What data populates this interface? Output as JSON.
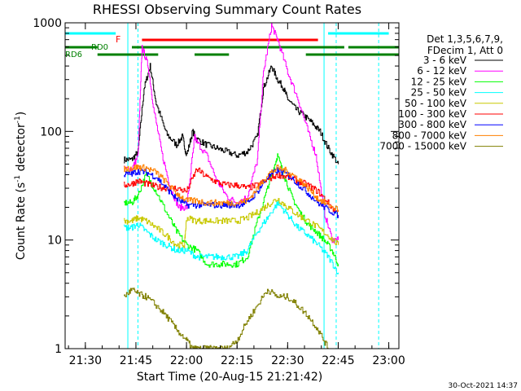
{
  "chart_data": {
    "type": "line",
    "title": "RHESSI Observing Summary Count Rates",
    "xlabel": "Start Time (20-Aug-15 21:21:42)",
    "ylabel_main": "Count Rate (s",
    "ylabel_sup1": "-1",
    "ylabel_mid": " detector",
    "ylabel_sup2": "-1",
    "ylabel_end": ")",
    "yscale": "log",
    "xlim": [
      21.4,
      23.05
    ],
    "ylim": [
      1,
      1000
    ],
    "xticks": [
      {
        "v": 21.5,
        "label": "21:30"
      },
      {
        "v": 21.75,
        "label": "21:45"
      },
      {
        "v": 22.0,
        "label": "22:00"
      },
      {
        "v": 22.25,
        "label": "22:15"
      },
      {
        "v": 22.5,
        "label": "22:30"
      },
      {
        "v": 22.75,
        "label": "22:45"
      },
      {
        "v": 23.0,
        "label": "23:00"
      }
    ],
    "yticks": [
      {
        "v": 1,
        "label": "1"
      },
      {
        "v": 10,
        "label": "10"
      },
      {
        "v": 100,
        "label": "100"
      },
      {
        "v": 1000,
        "label": "1000"
      }
    ],
    "legend_header": [
      "Det 1,3,5,6,7,9,",
      "FDecim 1, Att 0"
    ],
    "annotations": {
      "flare_flag": "F",
      "rd0": "RD0",
      "rd6": "RD6",
      "timestamp": "30-Oct-2021 14:37"
    },
    "flag_bars": [
      {
        "name": "F",
        "color": "#ff0000",
        "y": 49,
        "segments": [
          [
            21.78,
            22.65
          ]
        ]
      },
      {
        "name": "RD0",
        "color": "#008000",
        "y": 58,
        "segments": [
          [
            21.4,
            21.56
          ],
          [
            21.73,
            22.78
          ],
          [
            22.8,
            23.05
          ]
        ]
      },
      {
        "name": "RD6",
        "color": "#008000",
        "y": 67,
        "segments": [
          [
            21.56,
            21.86
          ],
          [
            22.04,
            22.21
          ],
          [
            22.59,
            23.05
          ]
        ]
      },
      {
        "name": "SAA",
        "color": "#00ffff",
        "y": 41,
        "segments": [
          [
            21.4,
            21.65
          ],
          [
            22.7,
            23.0
          ]
        ]
      }
    ],
    "vlines": [
      {
        "x": 21.71,
        "color": "#00ffff",
        "dashed": false
      },
      {
        "x": 21.76,
        "color": "#00ffff",
        "dashed": true
      },
      {
        "x": 22.68,
        "color": "#00ffff",
        "dashed": false
      },
      {
        "x": 22.74,
        "color": "#00ffff",
        "dashed": true
      },
      {
        "x": 22.95,
        "color": "#00ffff",
        "dashed": true
      }
    ],
    "series": [
      {
        "name": "3 - 6 keV",
        "color": "#000000",
        "x": [
          21.69,
          21.73,
          21.76,
          21.79,
          21.82,
          21.85,
          21.9,
          21.95,
          21.98,
          22.0,
          22.03,
          22.05,
          22.1,
          22.15,
          22.2,
          22.25,
          22.3,
          22.35,
          22.38,
          22.42,
          22.45,
          22.48,
          22.5,
          22.54,
          22.58,
          22.62,
          22.66,
          22.7,
          22.75
        ],
        "y": [
          55,
          55,
          65,
          250,
          400,
          180,
          95,
          75,
          90,
          60,
          100,
          85,
          75,
          70,
          65,
          60,
          65,
          90,
          250,
          400,
          300,
          250,
          200,
          160,
          140,
          120,
          100,
          70,
          50
        ]
      },
      {
        "name": "6 - 12 keV",
        "color": "#ff00ff",
        "x": [
          21.69,
          21.73,
          21.76,
          21.78,
          21.81,
          21.84,
          21.88,
          21.92,
          21.96,
          22.0,
          22.04,
          22.05,
          22.1,
          22.15,
          22.2,
          22.25,
          22.3,
          22.35,
          22.38,
          22.42,
          22.45,
          22.5,
          22.55,
          22.6,
          22.64,
          22.68,
          22.72,
          22.75
        ],
        "y": [
          45,
          45,
          60,
          600,
          400,
          150,
          60,
          30,
          20,
          20,
          90,
          80,
          60,
          35,
          25,
          22,
          25,
          55,
          350,
          950,
          700,
          350,
          200,
          100,
          60,
          18,
          10,
          10
        ]
      },
      {
        "name": "12 - 25 keV",
        "color": "#00ff00",
        "x": [
          21.69,
          21.73,
          21.76,
          21.8,
          21.85,
          21.9,
          21.95,
          22.0,
          22.05,
          22.1,
          22.15,
          22.2,
          22.25,
          22.3,
          22.35,
          22.4,
          22.43,
          22.45,
          22.48,
          22.52,
          22.56,
          22.6,
          22.64,
          22.68,
          22.72,
          22.75
        ],
        "y": [
          22,
          22,
          26,
          40,
          28,
          18,
          12,
          9,
          8,
          6,
          6,
          6,
          6,
          7,
          15,
          30,
          45,
          60,
          40,
          25,
          18,
          14,
          12,
          10,
          8,
          6
        ]
      },
      {
        "name": "25 - 50 keV",
        "color": "#00ffff",
        "x": [
          21.69,
          21.73,
          21.76,
          21.8,
          21.85,
          21.9,
          21.95,
          22.0,
          22.05,
          22.1,
          22.15,
          22.2,
          22.25,
          22.3,
          22.35,
          22.4,
          22.45,
          22.5,
          22.55,
          22.6,
          22.65,
          22.7,
          22.75
        ],
        "y": [
          13,
          13,
          14,
          12,
          10,
          9,
          8,
          8,
          7,
          7,
          7,
          7,
          7,
          8,
          12,
          16,
          22,
          17,
          13,
          11,
          9,
          7,
          5
        ]
      },
      {
        "name": "50 - 100 keV",
        "color": "#c8c800",
        "x": [
          21.69,
          21.73,
          21.76,
          21.8,
          21.85,
          21.9,
          21.95,
          21.99,
          22.0,
          22.05,
          22.1,
          22.15,
          22.2,
          22.25,
          22.3,
          22.35,
          22.4,
          22.45,
          22.5,
          22.55,
          22.6,
          22.65,
          22.7,
          22.75
        ],
        "y": [
          15,
          15,
          16,
          15,
          13,
          11,
          9,
          9,
          16,
          15,
          15,
          15,
          15,
          15,
          16,
          18,
          21,
          24,
          20,
          17,
          15,
          13,
          11,
          9
        ]
      },
      {
        "name": "100 - 300 keV",
        "color": "#ff0000",
        "x": [
          21.69,
          21.73,
          21.76,
          21.8,
          21.85,
          21.9,
          21.95,
          22.0,
          22.05,
          22.1,
          22.15,
          22.2,
          22.25,
          22.3,
          22.35,
          22.4,
          22.45,
          22.5,
          22.55,
          22.6,
          22.65,
          22.7,
          22.75
        ],
        "y": [
          32,
          33,
          35,
          33,
          31,
          30,
          30,
          28,
          45,
          38,
          34,
          32,
          32,
          30,
          32,
          36,
          40,
          38,
          35,
          32,
          28,
          22,
          17
        ]
      },
      {
        "name": "300 - 800 keV",
        "color": "#0000ff",
        "x": [
          21.69,
          21.73,
          21.76,
          21.8,
          21.85,
          21.9,
          21.95,
          22.0,
          22.05,
          22.1,
          22.15,
          22.2,
          22.25,
          22.3,
          22.35,
          22.4,
          22.45,
          22.5,
          22.55,
          22.6,
          22.65,
          22.7,
          22.75
        ],
        "y": [
          40,
          41,
          43,
          42,
          38,
          30,
          24,
          21,
          21,
          21,
          21,
          21,
          21,
          22,
          28,
          38,
          44,
          40,
          33,
          27,
          22,
          19,
          17
        ]
      },
      {
        "name": "800 - 7000 keV",
        "color": "#ff8000",
        "x": [
          21.69,
          21.73,
          21.76,
          21.8,
          21.85,
          21.9,
          21.95,
          22.0,
          22.05,
          22.1,
          22.15,
          22.2,
          22.25,
          22.3,
          22.35,
          22.4,
          22.45,
          22.5,
          22.55,
          22.6,
          22.65,
          22.7,
          22.75
        ],
        "y": [
          45,
          46,
          47,
          46,
          42,
          34,
          27,
          23,
          23,
          22,
          22,
          22,
          22,
          23,
          30,
          40,
          46,
          43,
          37,
          30,
          24,
          21,
          19
        ]
      },
      {
        "name": "7000 - 15000 keV",
        "color": "#808000",
        "x": [
          21.69,
          21.73,
          21.76,
          21.8,
          21.85,
          21.9,
          21.95,
          22.0,
          22.03,
          22.05,
          22.1,
          22.15,
          22.2,
          22.25,
          22.3,
          22.35,
          22.4,
          22.45,
          22.5,
          22.55,
          22.6,
          22.65,
          22.7
        ],
        "y": [
          3,
          3.5,
          3.2,
          3,
          2.5,
          2,
          1.5,
          1.2,
          1,
          1,
          1,
          1,
          1,
          1.2,
          1.8,
          2.5,
          3.5,
          3,
          3,
          2.5,
          2,
          1.5,
          1
        ]
      }
    ]
  }
}
